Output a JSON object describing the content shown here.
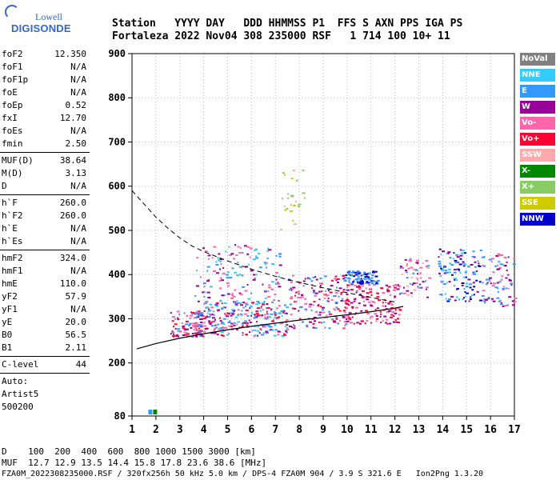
{
  "logo": {
    "top": "Lowell",
    "brand": "DIGISONDE"
  },
  "header": {
    "line1": "Station   YYYY DAY   DDD HHMMSS P1  FFS S AXN PPS IGA PS",
    "line2": "Fortaleza 2022 Nov04 308 235000 RSF   1 714 100 10+ 11"
  },
  "side_groups": [
    [
      [
        "foF2",
        "12.350"
      ],
      [
        "foF1",
        "N/A"
      ],
      [
        "foF1p",
        "N/A"
      ],
      [
        "foE",
        "N/A"
      ],
      [
        "foEp",
        "0.52"
      ],
      [
        "fxI",
        "12.70"
      ],
      [
        "foEs",
        "N/A"
      ],
      [
        "fmin",
        "2.50"
      ]
    ],
    [
      [
        "MUF(D)",
        "38.64"
      ],
      [
        "M(D)",
        "3.13"
      ],
      [
        "D",
        "N/A"
      ]
    ],
    [
      [
        "h`F",
        "260.0"
      ],
      [
        "h`F2",
        "260.0"
      ],
      [
        "h`E",
        "N/A"
      ],
      [
        "h`Es",
        "N/A"
      ]
    ],
    [
      [
        "hmF2",
        "324.0"
      ],
      [
        "hmF1",
        "N/A"
      ],
      [
        "hmE",
        "110.0"
      ],
      [
        "yF2",
        "57.9"
      ],
      [
        "yF1",
        "N/A"
      ],
      [
        "yE",
        "20.0"
      ],
      [
        "B0",
        "56.5"
      ],
      [
        "B1",
        "2.11"
      ]
    ],
    [
      [
        "C-level",
        "44"
      ]
    ]
  ],
  "auto": {
    "l1": "Auto:",
    "l2": "Artist5",
    "l3": "500200"
  },
  "legend": [
    {
      "label": "NoVal",
      "color": "#808080"
    },
    {
      "label": "NNE",
      "color": "#33ccff"
    },
    {
      "label": "E",
      "color": "#3399ff"
    },
    {
      "label": "W",
      "color": "#990099"
    },
    {
      "label": "Vo-",
      "color": "#ff66aa"
    },
    {
      "label": "Vo+",
      "color": "#ff0033"
    },
    {
      "label": "SSW",
      "color": "#ffaaaa"
    },
    {
      "label": "X-",
      "color": "#008800"
    },
    {
      "label": "X+",
      "color": "#88cc66"
    },
    {
      "label": "SSE",
      "color": "#cccc00"
    },
    {
      "label": "NNW",
      "color": "#0000cc"
    }
  ],
  "footer": {
    "line1": "D    100  200  400  600  800 1000 1500 3000 [km]",
    "line2": "MUF  12.7 12.9 13.5 14.4 15.8 17.8 23.6 38.6 [MHz]",
    "line3": "FZA0M_2022308235000.RSF / 320fx256h 50 kHz 5.0 km / DPS-4 FZA0M 904 / 3.9 S 321.6 E   Ion2Png 1.3.20"
  },
  "chart_data": {
    "type": "scatter",
    "xlim": [
      1,
      17
    ],
    "ylim": [
      80,
      900
    ],
    "xticks": [
      1,
      2,
      3,
      4,
      5,
      6,
      7,
      8,
      9,
      10,
      11,
      12,
      13,
      14,
      15,
      16,
      17
    ],
    "yticks": [
      80,
      200,
      300,
      400,
      500,
      600,
      700,
      800,
      900
    ],
    "grid": true,
    "legend_placement": "right",
    "trace_profile": {
      "x": [
        1.2,
        2.0,
        3.0,
        4.0,
        5.0,
        6.0,
        7.0,
        8.0,
        9.0,
        10.0,
        11.0,
        12.0,
        12.35
      ],
      "y": [
        232,
        244,
        256,
        266,
        275,
        283,
        290,
        297,
        303,
        309,
        316,
        324,
        328
      ]
    },
    "muf_curve": {
      "x": [
        1.0,
        1.5,
        2.0,
        2.5,
        3.0,
        3.5,
        4.0,
        5.0,
        6.0,
        7.0,
        8.0,
        9.0,
        10.0,
        11.0,
        12.0
      ],
      "y": [
        590,
        560,
        530,
        505,
        483,
        465,
        452,
        431,
        412,
        396,
        382,
        370,
        359,
        348,
        338
      ]
    },
    "echo_clusters": [
      {
        "x": [
          2.6,
          4.0
        ],
        "y": [
          260,
          320
        ],
        "n": 120,
        "colors": [
          "#ff0033",
          "#990099",
          "#ff66aa",
          "#3399ff"
        ]
      },
      {
        "x": [
          4.0,
          7.5
        ],
        "y": [
          262,
          340
        ],
        "n": 260,
        "colors": [
          "#ff0033",
          "#ff66aa",
          "#990099",
          "#3399ff",
          "#33ccff"
        ]
      },
      {
        "x": [
          3.6,
          7.2
        ],
        "y": [
          330,
          470
        ],
        "n": 150,
        "colors": [
          "#3399ff",
          "#33ccff",
          "#990099",
          "#ff66aa"
        ]
      },
      {
        "x": [
          7.5,
          10.0
        ],
        "y": [
          280,
          400
        ],
        "n": 170,
        "colors": [
          "#ff0033",
          "#990099",
          "#ff66aa",
          "#3399ff"
        ]
      },
      {
        "x": [
          9.8,
          12.2
        ],
        "y": [
          290,
          380
        ],
        "n": 160,
        "colors": [
          "#ff0033",
          "#ff66aa",
          "#990099"
        ]
      },
      {
        "x": [
          9.9,
          11.3
        ],
        "y": [
          380,
          410
        ],
        "n": 80,
        "colors": [
          "#0000cc",
          "#3399ff"
        ]
      },
      {
        "x": [
          12.2,
          13.4
        ],
        "y": [
          350,
          440
        ],
        "n": 60,
        "colors": [
          "#ffaaaa",
          "#ff66aa",
          "#3399ff",
          "#990099"
        ]
      },
      {
        "x": [
          13.8,
          15.6
        ],
        "y": [
          340,
          460
        ],
        "n": 120,
        "colors": [
          "#3399ff",
          "#33ccff",
          "#990099",
          "#0000cc"
        ]
      },
      {
        "x": [
          15.6,
          17.0
        ],
        "y": [
          330,
          450
        ],
        "n": 80,
        "colors": [
          "#990099",
          "#3399ff",
          "#ff66aa"
        ]
      },
      {
        "x": [
          7.2,
          8.2
        ],
        "y": [
          500,
          640
        ],
        "n": 25,
        "colors": [
          "#cccc00",
          "#88cc66",
          "#ffaaaa"
        ]
      }
    ],
    "markers": [
      {
        "x": 1.75,
        "y": 89,
        "color": "#3399ff"
      },
      {
        "x": 1.95,
        "y": 89,
        "color": "#008800"
      }
    ]
  }
}
